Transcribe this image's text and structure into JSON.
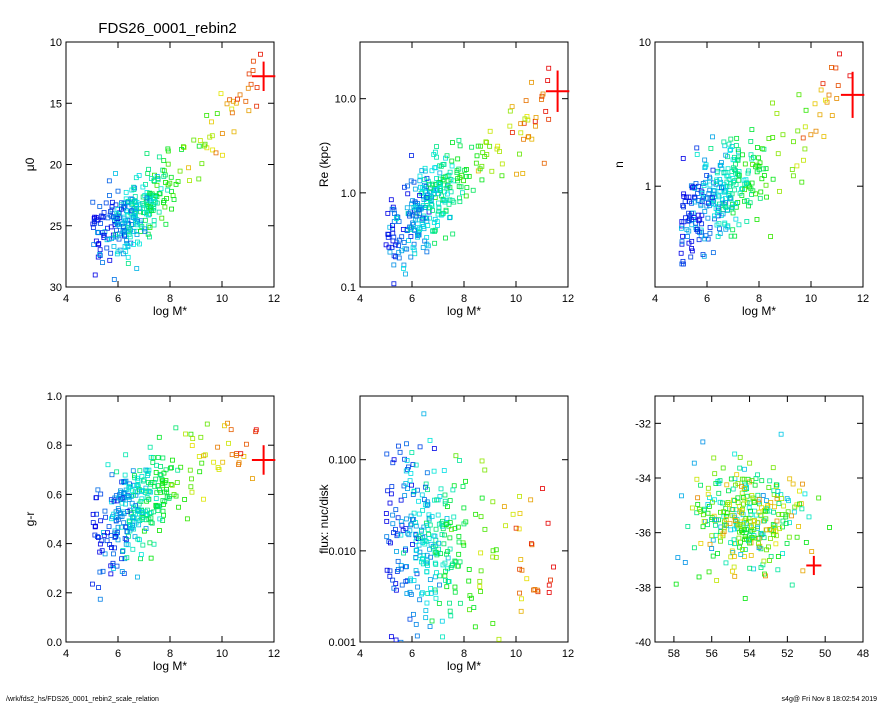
{
  "title": "FDS26_0001_rebin2",
  "footer": {
    "path": "/wrk/fds2_hs/FDS26_0001_rebin2_scale_relation",
    "stamp": "s4g@  Fri Nov  8 18:02:54 2019"
  },
  "colors": {
    "errorbar": "#ff0000",
    "axis": "#000000"
  },
  "chart_data": [
    {
      "id": "p1",
      "type": "scatter",
      "xlabel": "log M*",
      "ylabel": "μ0",
      "xlim": [
        4,
        12
      ],
      "ylim": [
        30,
        10
      ],
      "yscale": "linear",
      "inverted_y": true,
      "xticks": [
        4,
        6,
        8,
        10,
        12
      ],
      "yticks": [
        10,
        15,
        20,
        25,
        30
      ],
      "errorbar": {
        "x": 11.6,
        "y": 12.8,
        "dx": 0.45,
        "dy": 1.2
      },
      "trend": {
        "x": [
          5.2,
          6.5,
          8,
          9.5,
          11.2
        ],
        "y": [
          25.5,
          24.5,
          22.0,
          18.5,
          12.5
        ]
      },
      "spread": 1.5,
      "seed": 11
    },
    {
      "id": "p2",
      "type": "scatter",
      "xlabel": "log M*",
      "ylabel": "Re (kpc)",
      "xlim": [
        4,
        12
      ],
      "ylim": [
        0.1,
        40
      ],
      "yscale": "log",
      "xticks": [
        4,
        6,
        8,
        10,
        12
      ],
      "yticks": [
        0.1,
        1.0,
        10.0
      ],
      "ytick_labels": [
        "0.1",
        "1.0",
        "10.0"
      ],
      "errorbar": {
        "x": 11.6,
        "y": 12.0,
        "dx": 0.45,
        "dy": 0.22
      },
      "trend": {
        "x": [
          5.5,
          6.5,
          8,
          9.5,
          11.3
        ],
        "y": [
          0.35,
          0.7,
          1.5,
          3.0,
          8.0
        ]
      },
      "spread": 0.2,
      "seed": 23
    },
    {
      "id": "p3",
      "type": "scatter",
      "xlabel": "log M*",
      "ylabel": "n",
      "xlim": [
        4,
        12
      ],
      "ylim": [
        0.2,
        10
      ],
      "yscale": "log",
      "xticks": [
        4,
        6,
        8,
        10,
        12
      ],
      "yticks": [
        1,
        10
      ],
      "ytick_labels": [
        "1",
        "10"
      ],
      "errorbar": {
        "x": 11.6,
        "y": 4.3,
        "dx": 0.45,
        "dy": 0.16
      },
      "trend": {
        "x": [
          5.3,
          6.5,
          8,
          9.5,
          11.2
        ],
        "y": [
          0.65,
          0.85,
          1.3,
          2.0,
          5.0
        ]
      },
      "spread": 0.17,
      "seed": 37
    },
    {
      "id": "p4",
      "type": "scatter",
      "xlabel": "log M*",
      "ylabel": "g-r",
      "xlim": [
        4,
        12
      ],
      "ylim": [
        0.0,
        1.0
      ],
      "yscale": "linear",
      "xticks": [
        4,
        6,
        8,
        10,
        12
      ],
      "yticks": [
        0.0,
        0.2,
        0.4,
        0.6,
        0.8,
        1.0
      ],
      "ytick_labels": [
        "0.0",
        "0.2",
        "0.4",
        "0.6",
        "0.8",
        "1.0"
      ],
      "errorbar": {
        "x": 11.6,
        "y": 0.74,
        "dx": 0.45,
        "dy": 0.06
      },
      "trend": {
        "x": [
          5.2,
          6.5,
          8,
          9.5,
          11.2
        ],
        "y": [
          0.45,
          0.55,
          0.64,
          0.72,
          0.8
        ]
      },
      "spread": 0.1,
      "seed": 53
    },
    {
      "id": "p5",
      "type": "scatter",
      "xlabel": "log M*",
      "ylabel": "flux: nuc/disk",
      "xlim": [
        4,
        12
      ],
      "ylim": [
        0.001,
        0.5
      ],
      "yscale": "log",
      "xticks": [
        4,
        6,
        8,
        10,
        12
      ],
      "yticks": [
        0.001,
        0.01,
        0.1
      ],
      "ytick_labels": [
        "0.001",
        "0.010",
        "0.100"
      ],
      "trend": {
        "x": [
          5.3,
          6.5,
          8,
          9.5,
          11.2
        ],
        "y": [
          0.015,
          0.014,
          0.01,
          0.008,
          0.006
        ]
      },
      "spread": 0.45,
      "seed": 71
    },
    {
      "id": "p6",
      "type": "scatter",
      "xlabel": "",
      "ylabel": "",
      "xlim": [
        59,
        48
      ],
      "ylim": [
        -40,
        -31
      ],
      "yscale": "linear",
      "inverted_x": true,
      "xticks": [
        58,
        56,
        54,
        52,
        50,
        48
      ],
      "yticks": [
        -40,
        -38,
        -36,
        -34,
        -32
      ],
      "errorbar": {
        "x": 50.6,
        "y": -37.2,
        "dx": 0.4,
        "dy": 0.35
      },
      "cloud": {
        "cx": 54.2,
        "cy": -35.5,
        "sx": 1.5,
        "sy": 1.0
      },
      "seed": 97
    }
  ]
}
